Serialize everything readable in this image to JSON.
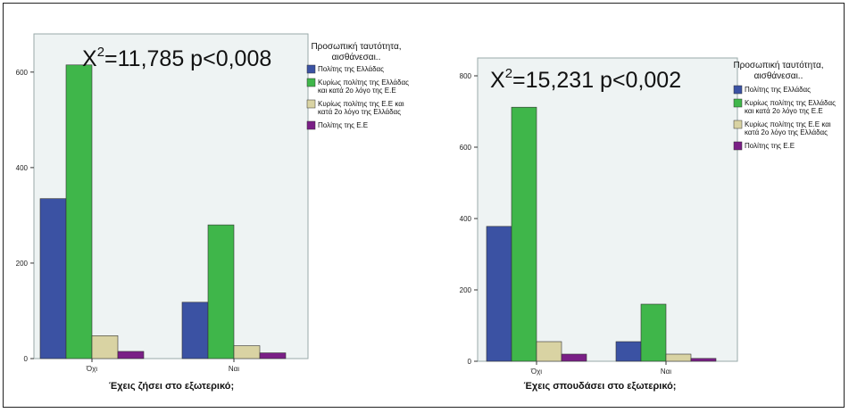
{
  "chart_data": [
    {
      "type": "bar",
      "annotation_main": "X",
      "annotation_sup": "2",
      "annotation_rest": "=11,785 p<0,008",
      "xlabel": "Έχεις ζήσει στο εξωτερικό;",
      "ylabel": "",
      "categories": [
        "Όχι",
        "Ναι"
      ],
      "yticks": [
        0,
        200,
        400,
        600
      ],
      "ylim": [
        0,
        680
      ],
      "legend_title": [
        "Προσωπική ταυτότητα,",
        "αισθάνεσαι.."
      ],
      "legend_placement": "right",
      "grid": false,
      "series": [
        {
          "name": "Πολίτης της Ελλάδας",
          "label_lines": [
            "Πολίτης της Ελλάδας"
          ],
          "color": "#3b52a3",
          "values": [
            335,
            118
          ]
        },
        {
          "name": "Κυρίως πολίτης της Ελλάδας και κατά 2ο λόγο της Ε.Ε",
          "label_lines": [
            "Κυρίως πολίτης της Ελλάδας",
            "και κατά 2ο λόγο της Ε.Ε"
          ],
          "color": "#3fb64a",
          "values": [
            615,
            280
          ]
        },
        {
          "name": "Κυρίως πολίτης της Ε.Ε και κατά 2ο λόγο της Ελλάδας",
          "label_lines": [
            "Κυρίως πολίτης της Ε.Ε και",
            "κατά 2ο λόγο της Ελλάδας"
          ],
          "color": "#d9d3a3",
          "values": [
            48,
            27
          ]
        },
        {
          "name": "Πολίτης της Ε.Ε",
          "label_lines": [
            "Πολίτης της Ε.Ε"
          ],
          "color": "#7a1f86",
          "values": [
            15,
            12
          ]
        }
      ]
    },
    {
      "type": "bar",
      "annotation_main": "X",
      "annotation_sup": "2",
      "annotation_rest": "=15,231 p<0,002",
      "xlabel": "Έχεις σπουδάσει στο εξωτερικό;",
      "ylabel": "",
      "categories": [
        "Όχι",
        "Ναι"
      ],
      "yticks": [
        0,
        200,
        400,
        600,
        800
      ],
      "ylim": [
        0,
        850
      ],
      "legend_title": [
        "Προσωπική ταυτότητα,",
        "αισθάνεσαι.."
      ],
      "legend_placement": "right",
      "grid": false,
      "series": [
        {
          "name": "Πολίτης της Ελλάδας",
          "label_lines": [
            "Πολίτης της Ελλάδας"
          ],
          "color": "#3b52a3",
          "values": [
            378,
            55
          ]
        },
        {
          "name": "Κυρίως πολίτης της Ελλάδας και κατά 2ο λόγο της Ε.Ε",
          "label_lines": [
            "Κυρίως πολίτης της Ελλάδας",
            "και κατά 2ο λόγο της Ε.Ε"
          ],
          "color": "#3fb64a",
          "values": [
            712,
            160
          ]
        },
        {
          "name": "Κυρίως πολίτης της Ε.Ε και κατά 2ο λόγο της Ελλάδας",
          "label_lines": [
            "Κυρίως πολίτης της Ε.Ε και",
            "κατά 2ο λόγο της Ελλάδας"
          ],
          "color": "#d9d3a3",
          "values": [
            55,
            20
          ]
        },
        {
          "name": "Πολίτης της Ε.Ε",
          "label_lines": [
            "Πολίτης της Ε.Ε"
          ],
          "color": "#7a1f86",
          "values": [
            20,
            8
          ]
        }
      ]
    }
  ]
}
